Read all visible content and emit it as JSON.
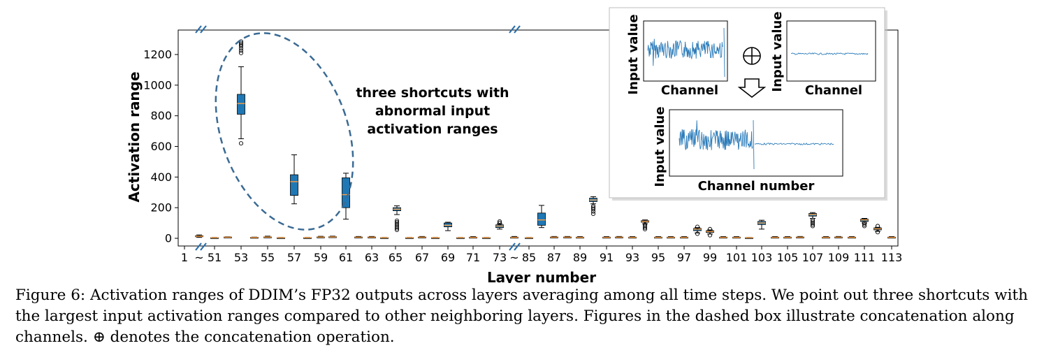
{
  "chart_data": {
    "type": "box",
    "xlabel": "Layer number",
    "ylabel": "Activation range",
    "ylim": [
      -40,
      1360
    ],
    "y_ticks": [
      0,
      200,
      400,
      600,
      800,
      1000,
      1200
    ],
    "x_tick_labels": [
      "1",
      "~",
      "51",
      "53",
      "55",
      "57",
      "59",
      "61",
      "63",
      "65",
      "67",
      "69",
      "71",
      "73",
      "~",
      "85",
      "87",
      "89",
      "91",
      "93",
      "95",
      "97",
      "99",
      "101",
      "103",
      "105",
      "107",
      "109",
      "111",
      "113"
    ],
    "box_color": "#1f77b4",
    "median_color": "#ff9f40",
    "axis_breaks": [
      "between 1 and 51",
      "between 73 and 85"
    ],
    "boxes": [
      {
        "layer": "1",
        "q1": 10,
        "median": 13,
        "q3": 17,
        "whisker_low": 6,
        "whisker_high": 22
      },
      {
        "layer": "51",
        "q1": 6,
        "median": 7,
        "q3": 9,
        "whisker_low": 5,
        "whisker_high": 10
      },
      {
        "layer": "52",
        "q1": 3,
        "median": 4,
        "q3": 5,
        "whisker_low": 2,
        "whisker_high": 6
      },
      {
        "layer": "53",
        "q1": 810,
        "median": 880,
        "q3": 940,
        "whisker_low": 650,
        "whisker_high": 1120,
        "outliers": [
          620,
          1210,
          1225,
          1240,
          1255,
          1265,
          1275,
          1285
        ]
      },
      {
        "layer": "54",
        "q1": 4,
        "median": 5,
        "q3": 7,
        "whisker_low": 3,
        "whisker_high": 8
      },
      {
        "layer": "55",
        "q1": 6,
        "median": 8,
        "q3": 10,
        "whisker_low": 4,
        "whisker_high": 14
      },
      {
        "layer": "56",
        "q1": 3,
        "median": 4,
        "q3": 5,
        "whisker_low": 2,
        "whisker_high": 6
      },
      {
        "layer": "57",
        "q1": 280,
        "median": 370,
        "q3": 415,
        "whisker_low": 225,
        "whisker_high": 545
      },
      {
        "layer": "58",
        "q1": 3,
        "median": 4,
        "q3": 5,
        "whisker_low": 2,
        "whisker_high": 6
      },
      {
        "layer": "59",
        "q1": 6,
        "median": 8,
        "q3": 10,
        "whisker_low": 4,
        "whisker_high": 13
      },
      {
        "layer": "60",
        "q1": 7,
        "median": 9,
        "q3": 11,
        "whisker_low": 5,
        "whisker_high": 14
      },
      {
        "layer": "61",
        "q1": 200,
        "median": 285,
        "q3": 395,
        "whisker_low": 125,
        "whisker_high": 425
      },
      {
        "layer": "62",
        "q1": 5,
        "median": 7,
        "q3": 9,
        "whisker_low": 3,
        "whisker_high": 12
      },
      {
        "layer": "63",
        "q1": 5,
        "median": 7,
        "q3": 9,
        "whisker_low": 3,
        "whisker_high": 12
      },
      {
        "layer": "64",
        "q1": 3,
        "median": 4,
        "q3": 5,
        "whisker_low": 2,
        "whisker_high": 6
      },
      {
        "layer": "65",
        "q1": 180,
        "median": 190,
        "q3": 200,
        "whisker_low": 155,
        "whisker_high": 212,
        "outliers": [
          55,
          65,
          75,
          85,
          95,
          105,
          115
        ]
      },
      {
        "layer": "66",
        "q1": 3,
        "median": 4,
        "q3": 5,
        "whisker_low": 2,
        "whisker_high": 6
      },
      {
        "layer": "67",
        "q1": 5,
        "median": 7,
        "q3": 9,
        "whisker_low": 3,
        "whisker_high": 12
      },
      {
        "layer": "68",
        "q1": 3,
        "median": 4,
        "q3": 5,
        "whisker_low": 2,
        "whisker_high": 6
      },
      {
        "layer": "69",
        "q1": 75,
        "median": 85,
        "q3": 100,
        "whisker_low": 50,
        "whisker_high": 105
      },
      {
        "layer": "70",
        "q1": 3,
        "median": 4,
        "q3": 5,
        "whisker_low": 2,
        "whisker_high": 6
      },
      {
        "layer": "71",
        "q1": 4,
        "median": 6,
        "q3": 8,
        "whisker_low": 3,
        "whisker_high": 11
      },
      {
        "layer": "72",
        "q1": 3,
        "median": 4,
        "q3": 5,
        "whisker_low": 2,
        "whisker_high": 6
      },
      {
        "layer": "73",
        "q1": 70,
        "median": 80,
        "q3": 88,
        "whisker_low": 60,
        "whisker_high": 95,
        "outliers": [
          100,
          110
        ]
      },
      {
        "layer": "85",
        "q1": 4,
        "median": 6,
        "q3": 8,
        "whisker_low": 3,
        "whisker_high": 12
      },
      {
        "layer": "86",
        "q1": 3,
        "median": 4,
        "q3": 5,
        "whisker_low": 2,
        "whisker_high": 6
      },
      {
        "layer": "87a",
        "q1": 85,
        "median": 120,
        "q3": 165,
        "whisker_low": 70,
        "whisker_high": 215
      },
      {
        "layer": "87",
        "q1": 5,
        "median": 7,
        "q3": 9,
        "whisker_low": 3,
        "whisker_high": 12
      },
      {
        "layer": "88",
        "q1": 5,
        "median": 7,
        "q3": 9,
        "whisker_low": 3,
        "whisker_high": 12
      },
      {
        "layer": "89",
        "q1": 4,
        "median": 6,
        "q3": 8,
        "whisker_low": 3,
        "whisker_high": 11
      },
      {
        "layer": "90",
        "q1": 240,
        "median": 250,
        "q3": 262,
        "whisker_low": 225,
        "whisker_high": 272,
        "outliers": [
          160,
          175,
          190,
          200,
          210
        ]
      },
      {
        "layer": "91",
        "q1": 4,
        "median": 6,
        "q3": 8,
        "whisker_low": 3,
        "whisker_high": 11
      },
      {
        "layer": "92",
        "q1": 5,
        "median": 7,
        "q3": 9,
        "whisker_low": 3,
        "whisker_high": 12
      },
      {
        "layer": "93",
        "q1": 4,
        "median": 6,
        "q3": 8,
        "whisker_low": 3,
        "whisker_high": 11
      },
      {
        "layer": "94",
        "q1": 105,
        "median": 110,
        "q3": 115,
        "whisker_low": 95,
        "whisker_high": 120,
        "outliers": [
          60,
          70,
          80,
          90
        ]
      },
      {
        "layer": "95",
        "q1": 4,
        "median": 6,
        "q3": 8,
        "whisker_low": 3,
        "whisker_high": 11
      },
      {
        "layer": "96",
        "q1": 4,
        "median": 6,
        "q3": 8,
        "whisker_low": 3,
        "whisker_high": 11
      },
      {
        "layer": "97",
        "q1": 4,
        "median": 6,
        "q3": 8,
        "whisker_low": 3,
        "whisker_high": 11
      },
      {
        "layer": "98",
        "q1": 50,
        "median": 60,
        "q3": 65,
        "whisker_low": 35,
        "whisker_high": 70,
        "outliers": [
          30,
          75
        ]
      },
      {
        "layer": "99",
        "q1": 38,
        "median": 44,
        "q3": 50,
        "whisker_low": 28,
        "whisker_high": 55,
        "outliers": [
          20,
          60
        ]
      },
      {
        "layer": "100",
        "q1": 4,
        "median": 6,
        "q3": 8,
        "whisker_low": 3,
        "whisker_high": 11
      },
      {
        "layer": "101",
        "q1": 4,
        "median": 6,
        "q3": 8,
        "whisker_low": 3,
        "whisker_high": 11
      },
      {
        "layer": "102",
        "q1": 3,
        "median": 4,
        "q3": 5,
        "whisker_low": 2,
        "whisker_high": 6
      },
      {
        "layer": "103",
        "q1": 90,
        "median": 100,
        "q3": 110,
        "whisker_low": 60,
        "whisker_high": 118
      },
      {
        "layer": "104",
        "q1": 4,
        "median": 6,
        "q3": 8,
        "whisker_low": 3,
        "whisker_high": 11
      },
      {
        "layer": "105",
        "q1": 4,
        "median": 6,
        "q3": 8,
        "whisker_low": 3,
        "whisker_high": 11
      },
      {
        "layer": "106",
        "q1": 5,
        "median": 7,
        "q3": 9,
        "whisker_low": 3,
        "whisker_high": 12
      },
      {
        "layer": "107",
        "q1": 145,
        "median": 155,
        "q3": 162,
        "whisker_low": 130,
        "whisker_high": 168,
        "outliers": [
          80,
          90,
          100,
          110,
          120
        ]
      },
      {
        "layer": "108",
        "q1": 4,
        "median": 6,
        "q3": 8,
        "whisker_low": 3,
        "whisker_high": 11
      },
      {
        "layer": "109",
        "q1": 5,
        "median": 7,
        "q3": 9,
        "whisker_low": 3,
        "whisker_high": 12
      },
      {
        "layer": "110",
        "q1": 4,
        "median": 6,
        "q3": 8,
        "whisker_low": 3,
        "whisker_high": 11
      },
      {
        "layer": "111",
        "q1": 110,
        "median": 120,
        "q3": 125,
        "whisker_low": 100,
        "whisker_high": 130,
        "outliers": [
          80,
          90,
          100
        ]
      },
      {
        "layer": "112",
        "q1": 55,
        "median": 62,
        "q3": 68,
        "whisker_low": 45,
        "whisker_high": 72,
        "outliers": [
          40,
          80
        ]
      },
      {
        "layer": "113",
        "q1": 4,
        "median": 6,
        "q3": 8,
        "whisker_low": 3,
        "whisker_high": 11
      }
    ]
  },
  "annotation": {
    "lines": [
      "three shortcuts with",
      "abnormal input",
      "activation ranges"
    ],
    "ellipse_color": "#3a6a93"
  },
  "inset": {
    "top_left": {
      "xlabel": "Channel",
      "ylabel": "Input value"
    },
    "top_right": {
      "xlabel": "Channel",
      "ylabel": "Input value"
    },
    "bottom": {
      "xlabel": "Channel number",
      "ylabel": "Input value"
    },
    "operator": "⊕",
    "line_color": "#2b7bb9"
  },
  "caption": "Figure 6: Activation ranges of DDIM’s FP32 outputs across layers averaging among all time steps. We point out three shortcuts with the largest input activation ranges compared to other neighboring layers. Figures in the dashed box illustrate concatenation along channels. ⊕ denotes the concatenation operation."
}
